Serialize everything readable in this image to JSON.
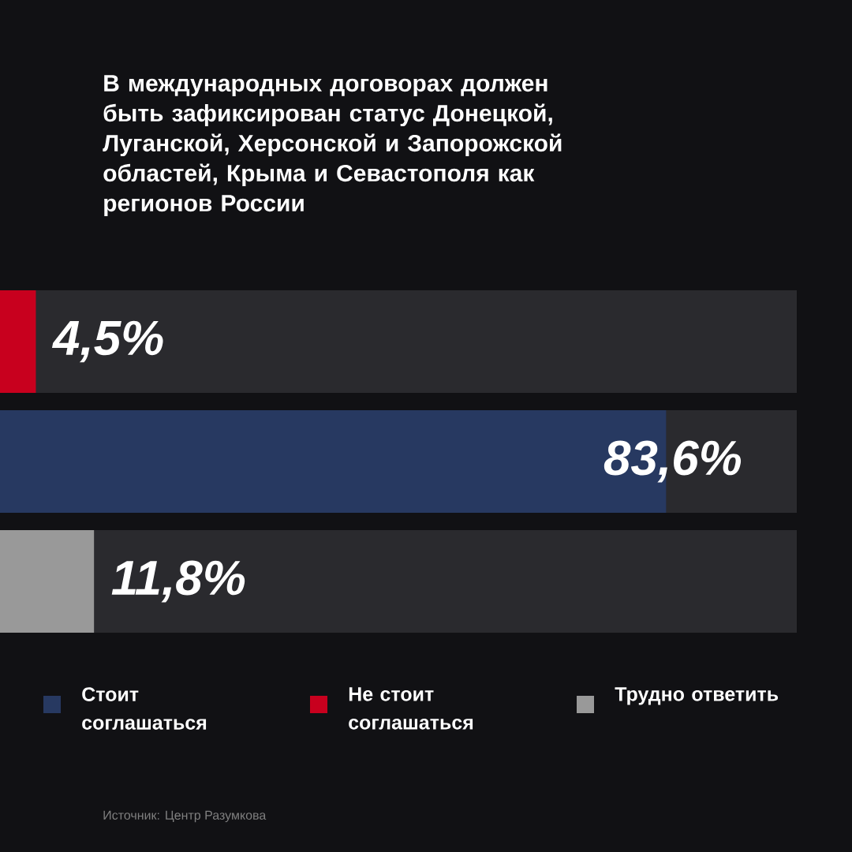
{
  "chart_data": {
    "type": "bar",
    "orientation": "horizontal",
    "stacked": true,
    "title": "В международных договорах должен быть зафиксирован статус Донецкой, Луганской, Херсонской и Запорожской областей, Крыма и Севастополя как регионов России",
    "categories": [
      null,
      null,
      null
    ],
    "series": [
      {
        "name": "Стоит соглашаться",
        "color": "#273961",
        "values": [
          null,
          83.6,
          null
        ],
        "value_labels": [
          null,
          "83,6%",
          null
        ]
      },
      {
        "name": "Не стоит соглашаться",
        "color": "#c8001e",
        "values": [
          4.5,
          null,
          null
        ],
        "value_labels": [
          "4,5%",
          null,
          null
        ]
      },
      {
        "name": "Трудно ответить",
        "color": "#999999",
        "values": [
          null,
          null,
          11.8
        ],
        "value_labels": [
          null,
          null,
          "11,8%"
        ]
      }
    ],
    "xlim": [
      0,
      100
    ],
    "tick_labels": false,
    "legend": "bottom",
    "annotations": [
      "Источник: Центр Разумкова"
    ]
  }
}
